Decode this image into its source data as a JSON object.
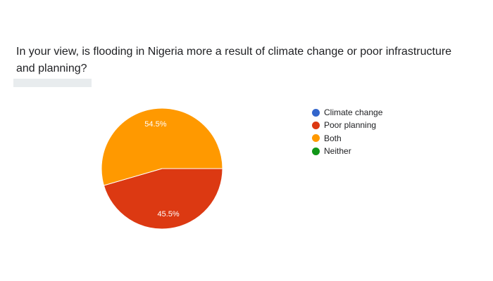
{
  "question": {
    "title": "In your view, is flooding in Nigeria more a result of climate change or poor infrastructure and planning?"
  },
  "chart_data": {
    "type": "pie",
    "title": "",
    "categories": [
      "Climate change",
      "Poor planning",
      "Both",
      "Neither"
    ],
    "values": [
      0,
      45.5,
      54.5,
      0
    ],
    "data_labels": [
      "",
      "45.5%",
      "54.5%",
      ""
    ],
    "colors": [
      "#3366cc",
      "#dc3912",
      "#ff9900",
      "#109618"
    ],
    "legend_position": "right"
  }
}
